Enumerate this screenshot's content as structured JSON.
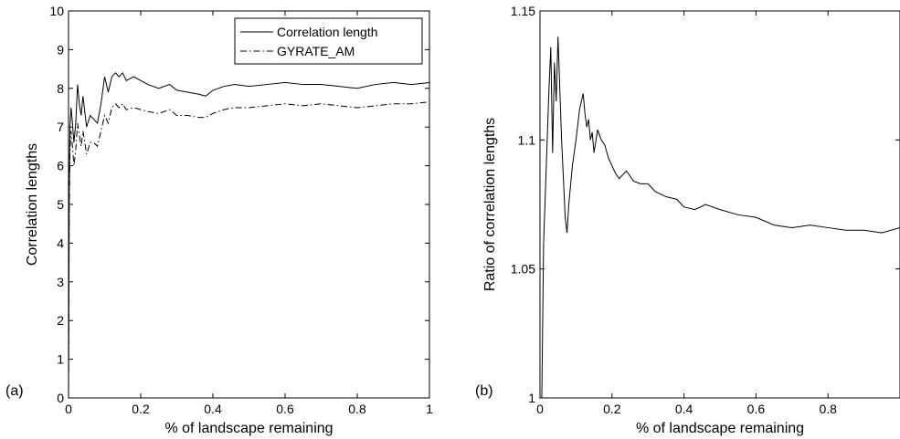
{
  "chart_data": [
    {
      "type": "line",
      "panel_label": "(a)",
      "xlabel": "% of landscape remaining",
      "ylabel": "Correlation lengths",
      "xlim": [
        0,
        1
      ],
      "ylim": [
        0,
        10
      ],
      "xticks": [
        0,
        0.2,
        0.4,
        0.6,
        0.8,
        1
      ],
      "xtick_labels": [
        "0",
        "0.2",
        "0.4",
        "0.6",
        "0.8",
        "1"
      ],
      "yticks": [
        0,
        1,
        2,
        3,
        4,
        5,
        6,
        7,
        8,
        9,
        10
      ],
      "ytick_labels": [
        "0",
        "1",
        "2",
        "3",
        "4",
        "5",
        "6",
        "7",
        "8",
        "9",
        "10"
      ],
      "grid": false,
      "legend_position": "top-right",
      "series": [
        {
          "name": "Correlation length",
          "style": "solid",
          "x": [
            0.0,
            0.002,
            0.004,
            0.007,
            0.01,
            0.015,
            0.02,
            0.025,
            0.03,
            0.035,
            0.04,
            0.045,
            0.05,
            0.06,
            0.07,
            0.08,
            0.09,
            0.1,
            0.11,
            0.12,
            0.13,
            0.14,
            0.15,
            0.16,
            0.18,
            0.2,
            0.22,
            0.25,
            0.28,
            0.3,
            0.33,
            0.36,
            0.38,
            0.4,
            0.43,
            0.46,
            0.5,
            0.55,
            0.6,
            0.65,
            0.7,
            0.75,
            0.8,
            0.85,
            0.9,
            0.95,
            1.0
          ],
          "y": [
            0.0,
            5.5,
            7.0,
            7.5,
            7.2,
            6.6,
            7.1,
            8.1,
            7.6,
            7.3,
            7.8,
            7.4,
            7.0,
            7.3,
            7.2,
            7.1,
            7.6,
            8.3,
            7.9,
            8.3,
            8.4,
            8.3,
            8.4,
            8.2,
            8.3,
            8.2,
            8.1,
            8.0,
            8.1,
            7.95,
            7.9,
            7.85,
            7.8,
            7.95,
            8.05,
            8.1,
            8.05,
            8.1,
            8.15,
            8.1,
            8.1,
            8.05,
            8.0,
            8.1,
            8.15,
            8.1,
            8.15
          ]
        },
        {
          "name": "GYRATE_AM",
          "style": "dash-dot",
          "x": [
            0.0,
            0.002,
            0.004,
            0.007,
            0.01,
            0.015,
            0.02,
            0.025,
            0.03,
            0.035,
            0.04,
            0.045,
            0.05,
            0.06,
            0.07,
            0.08,
            0.09,
            0.1,
            0.11,
            0.12,
            0.13,
            0.14,
            0.15,
            0.16,
            0.18,
            0.2,
            0.22,
            0.25,
            0.28,
            0.3,
            0.33,
            0.36,
            0.38,
            0.4,
            0.43,
            0.46,
            0.5,
            0.55,
            0.6,
            0.65,
            0.7,
            0.75,
            0.8,
            0.85,
            0.9,
            0.95,
            1.0
          ],
          "y": [
            0.0,
            4.8,
            6.4,
            6.9,
            6.6,
            6.0,
            6.4,
            7.1,
            6.8,
            6.5,
            6.9,
            6.6,
            6.3,
            6.6,
            6.6,
            6.5,
            6.9,
            7.3,
            7.1,
            7.5,
            7.6,
            7.5,
            7.6,
            7.45,
            7.5,
            7.45,
            7.4,
            7.35,
            7.45,
            7.3,
            7.3,
            7.25,
            7.25,
            7.35,
            7.45,
            7.5,
            7.5,
            7.55,
            7.6,
            7.55,
            7.6,
            7.55,
            7.5,
            7.55,
            7.6,
            7.6,
            7.65
          ]
        }
      ]
    },
    {
      "type": "line",
      "panel_label": "(b)",
      "xlabel": "% of landscape remaining",
      "ylabel": "Ratio of correlation lengths",
      "xlim": [
        0,
        1
      ],
      "ylim": [
        1,
        1.15
      ],
      "xticks": [
        0,
        0.2,
        0.4,
        0.6,
        0.8
      ],
      "xtick_labels": [
        "0",
        "0.2",
        "0.4",
        "0.6",
        "0.8"
      ],
      "yticks": [
        1,
        1.05,
        1.1,
        1.15
      ],
      "ytick_labels": [
        "1",
        "1.05",
        "1.1",
        "1.15"
      ],
      "grid": false,
      "series": [
        {
          "style": "solid",
          "x": [
            0.005,
            0.01,
            0.015,
            0.02,
            0.025,
            0.03,
            0.035,
            0.04,
            0.045,
            0.05,
            0.055,
            0.06,
            0.065,
            0.07,
            0.075,
            0.08,
            0.09,
            0.1,
            0.11,
            0.12,
            0.125,
            0.13,
            0.135,
            0.14,
            0.145,
            0.15,
            0.16,
            0.17,
            0.18,
            0.19,
            0.2,
            0.21,
            0.22,
            0.24,
            0.26,
            0.28,
            0.3,
            0.32,
            0.35,
            0.38,
            0.4,
            0.43,
            0.46,
            0.5,
            0.55,
            0.6,
            0.65,
            0.7,
            0.75,
            0.8,
            0.85,
            0.9,
            0.95,
            1.0
          ],
          "y": [
            1.0,
            1.06,
            1.08,
            1.1,
            1.12,
            1.136,
            1.095,
            1.13,
            1.115,
            1.14,
            1.12,
            1.1,
            1.085,
            1.07,
            1.064,
            1.075,
            1.09,
            1.1,
            1.112,
            1.118,
            1.11,
            1.105,
            1.108,
            1.1,
            1.103,
            1.095,
            1.104,
            1.1,
            1.098,
            1.093,
            1.09,
            1.087,
            1.085,
            1.088,
            1.084,
            1.083,
            1.083,
            1.08,
            1.078,
            1.077,
            1.074,
            1.073,
            1.075,
            1.073,
            1.071,
            1.07,
            1.067,
            1.066,
            1.067,
            1.066,
            1.065,
            1.065,
            1.064,
            1.066
          ]
        }
      ]
    }
  ]
}
